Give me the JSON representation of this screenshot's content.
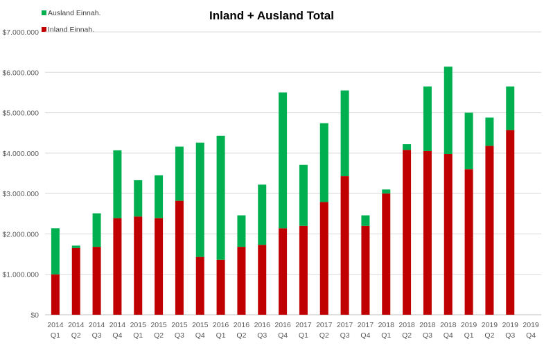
{
  "chart_data": {
    "type": "bar",
    "stacked": true,
    "title": "Inland + Ausland Total",
    "xlabel": "",
    "ylabel": "",
    "ylim": [
      0,
      7000000
    ],
    "yticks": [
      0,
      1000000,
      2000000,
      3000000,
      4000000,
      5000000,
      6000000,
      7000000
    ],
    "ytick_labels": [
      "$0",
      "$1.000.000",
      "$2.000.000",
      "$3.000.000",
      "$4.000.000",
      "$5.000.000",
      "$6.000.000",
      "$7.000.000"
    ],
    "grid": true,
    "legend_position": "top-left",
    "categories": [
      {
        "year": "2014",
        "quarter": "Q1"
      },
      {
        "year": "2014",
        "quarter": "Q2"
      },
      {
        "year": "2014",
        "quarter": "Q3"
      },
      {
        "year": "2014",
        "quarter": "Q4"
      },
      {
        "year": "2015",
        "quarter": "Q1"
      },
      {
        "year": "2015",
        "quarter": "Q2"
      },
      {
        "year": "2015",
        "quarter": "Q3"
      },
      {
        "year": "2015",
        "quarter": "Q4"
      },
      {
        "year": "2016",
        "quarter": "Q1"
      },
      {
        "year": "2016",
        "quarter": "Q2"
      },
      {
        "year": "2016",
        "quarter": "Q3"
      },
      {
        "year": "2016",
        "quarter": "Q4"
      },
      {
        "year": "2017",
        "quarter": "Q1"
      },
      {
        "year": "2017",
        "quarter": "Q2"
      },
      {
        "year": "2017",
        "quarter": "Q3"
      },
      {
        "year": "2017",
        "quarter": "Q4"
      },
      {
        "year": "2018",
        "quarter": "Q1"
      },
      {
        "year": "2018",
        "quarter": "Q2"
      },
      {
        "year": "2018",
        "quarter": "Q3"
      },
      {
        "year": "2018",
        "quarter": "Q4"
      },
      {
        "year": "2019",
        "quarter": "Q1"
      },
      {
        "year": "2019",
        "quarter": "Q2"
      },
      {
        "year": "2019",
        "quarter": "Q3"
      },
      {
        "year": "2019",
        "quarter": "Q4"
      }
    ],
    "series": [
      {
        "name": "Inland Einnah.",
        "color": "#C00000",
        "values": [
          1000000,
          1650000,
          1680000,
          2390000,
          2430000,
          2390000,
          2820000,
          1430000,
          1360000,
          1680000,
          1730000,
          2140000,
          2200000,
          2790000,
          3430000,
          2200000,
          3000000,
          4080000,
          4050000,
          3980000,
          3600000,
          4180000,
          4570000,
          0
        ]
      },
      {
        "name": "Ausland Einnah.",
        "color": "#00B050",
        "values": [
          1140000,
          60000,
          830000,
          1680000,
          900000,
          1060000,
          1340000,
          2830000,
          3070000,
          780000,
          1490000,
          3360000,
          1510000,
          1950000,
          2120000,
          260000,
          100000,
          140000,
          1600000,
          2160000,
          1400000,
          700000,
          1080000,
          0
        ]
      }
    ]
  }
}
